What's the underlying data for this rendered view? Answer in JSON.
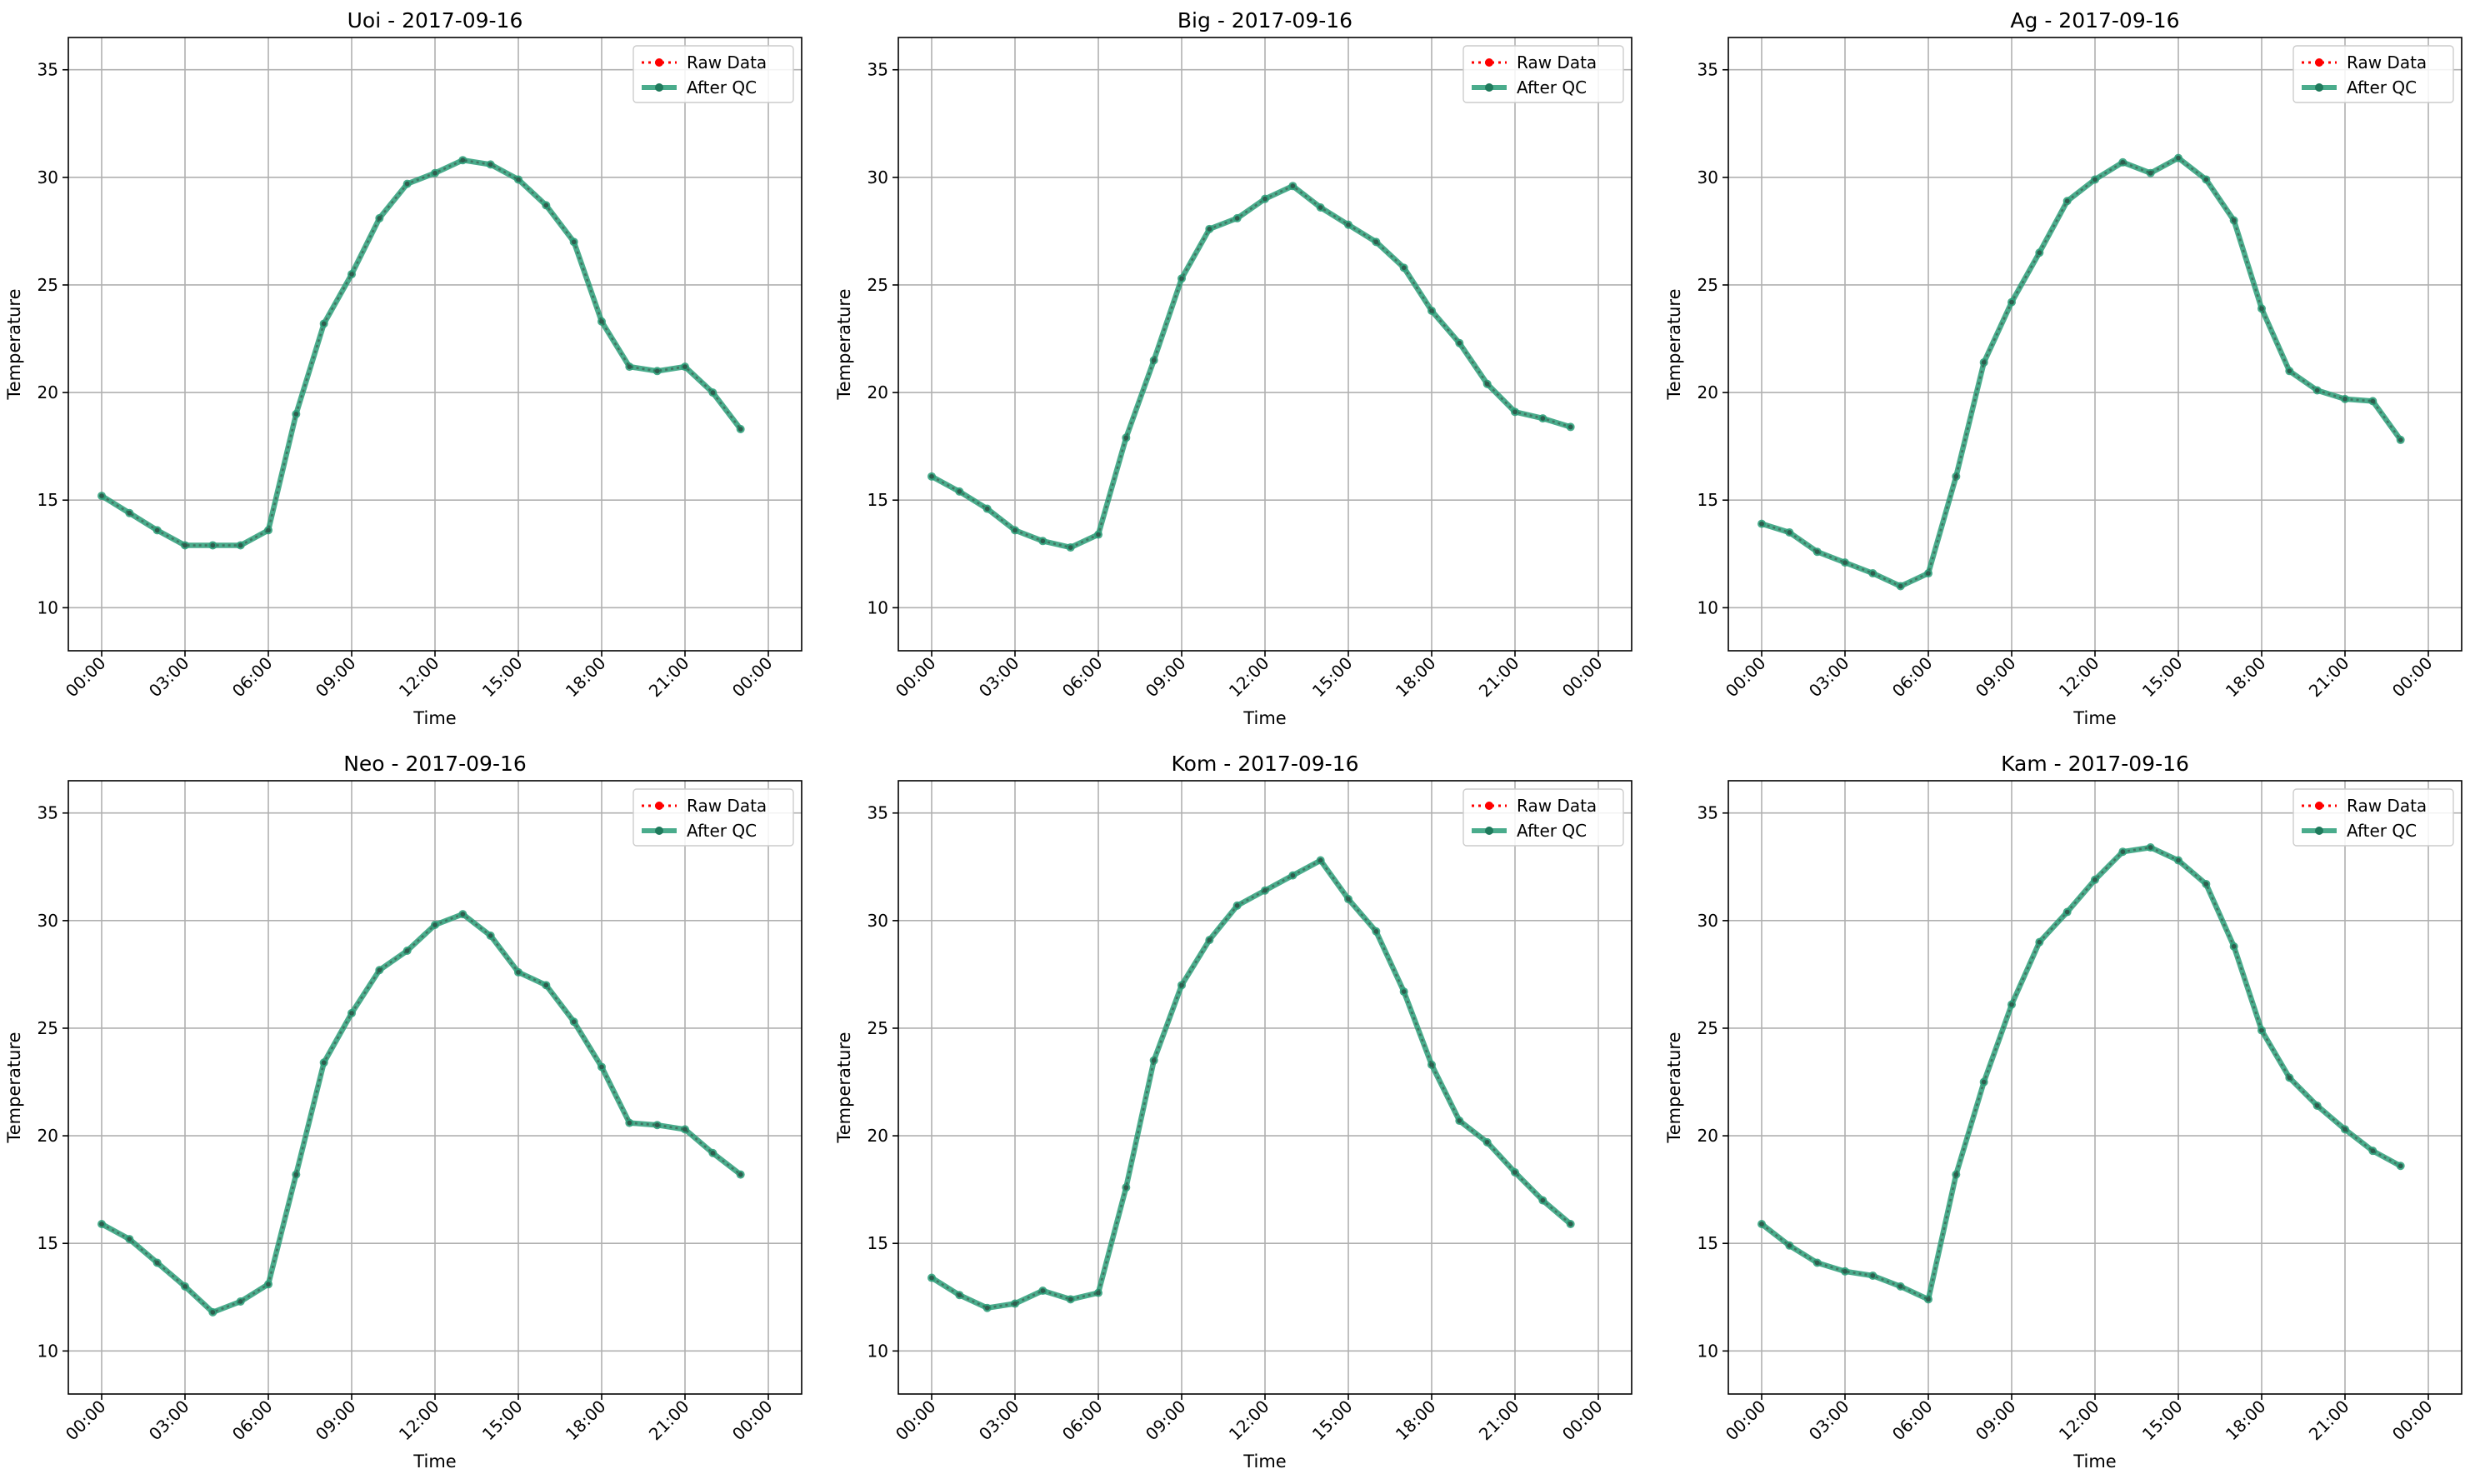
{
  "chart_data": [
    {
      "type": "line",
      "title": "Uoi - 2017-09-16",
      "xlabel": "Time",
      "ylabel": "Temperature",
      "xticks": [
        "00:00",
        "03:00",
        "06:00",
        "09:00",
        "12:00",
        "15:00",
        "18:00",
        "21:00",
        "00:00"
      ],
      "yticks": [
        10,
        15,
        20,
        25,
        30,
        35
      ],
      "ylim": [
        8,
        36.5
      ],
      "x_hours": [
        0,
        1,
        2,
        3,
        4,
        5,
        6,
        7,
        8,
        9,
        10,
        11,
        12,
        13,
        14,
        15,
        16,
        17,
        18,
        19,
        20,
        21,
        22,
        23
      ],
      "series": [
        {
          "name": "Raw Data",
          "color": "#ff0000",
          "style": "dotted",
          "values": [
            15.2,
            14.4,
            13.6,
            12.9,
            12.9,
            12.9,
            13.6,
            19.0,
            23.2,
            25.5,
            28.1,
            29.7,
            30.2,
            30.8,
            30.6,
            29.9,
            28.7,
            27.0,
            23.3,
            21.2,
            21.0,
            21.2,
            20.0,
            18.3
          ]
        },
        {
          "name": "After QC",
          "color": "#2a9d78",
          "style": "solid",
          "values": [
            15.2,
            14.4,
            13.6,
            12.9,
            12.9,
            12.9,
            13.6,
            19.0,
            23.2,
            25.5,
            28.1,
            29.7,
            30.2,
            30.8,
            30.6,
            29.9,
            28.7,
            27.0,
            23.3,
            21.2,
            21.0,
            21.2,
            20.0,
            18.3
          ]
        }
      ],
      "legend_position": "upper right",
      "grid": true
    },
    {
      "type": "line",
      "title": "Big - 2017-09-16",
      "xlabel": "Time",
      "ylabel": "Temperature",
      "xticks": [
        "00:00",
        "03:00",
        "06:00",
        "09:00",
        "12:00",
        "15:00",
        "18:00",
        "21:00",
        "00:00"
      ],
      "yticks": [
        10,
        15,
        20,
        25,
        30,
        35
      ],
      "ylim": [
        8,
        36.5
      ],
      "x_hours": [
        0,
        1,
        2,
        3,
        4,
        5,
        6,
        7,
        8,
        9,
        10,
        11,
        12,
        13,
        14,
        15,
        16,
        17,
        18,
        19,
        20,
        21,
        22,
        23
      ],
      "series": [
        {
          "name": "Raw Data",
          "color": "#ff0000",
          "style": "dotted",
          "values": [
            16.1,
            15.4,
            14.6,
            13.6,
            13.1,
            12.8,
            13.4,
            17.9,
            21.5,
            25.3,
            27.6,
            28.1,
            29.0,
            29.6,
            28.6,
            27.8,
            27.0,
            25.8,
            23.8,
            22.3,
            20.4,
            19.1,
            18.8,
            18.4
          ]
        },
        {
          "name": "After QC",
          "color": "#2a9d78",
          "style": "solid",
          "values": [
            16.1,
            15.4,
            14.6,
            13.6,
            13.1,
            12.8,
            13.4,
            17.9,
            21.5,
            25.3,
            27.6,
            28.1,
            29.0,
            29.6,
            28.6,
            27.8,
            27.0,
            25.8,
            23.8,
            22.3,
            20.4,
            19.1,
            18.8,
            18.4
          ]
        }
      ],
      "legend_position": "upper right",
      "grid": true
    },
    {
      "type": "line",
      "title": "Ag - 2017-09-16",
      "xlabel": "Time",
      "ylabel": "Temperature",
      "xticks": [
        "00:00",
        "03:00",
        "06:00",
        "09:00",
        "12:00",
        "15:00",
        "18:00",
        "21:00",
        "00:00"
      ],
      "yticks": [
        10,
        15,
        20,
        25,
        30,
        35
      ],
      "ylim": [
        8,
        36.5
      ],
      "x_hours": [
        0,
        1,
        2,
        3,
        4,
        5,
        6,
        7,
        8,
        9,
        10,
        11,
        12,
        13,
        14,
        15,
        16,
        17,
        18,
        19,
        20,
        21,
        22,
        23
      ],
      "series": [
        {
          "name": "Raw Data",
          "color": "#ff0000",
          "style": "dotted",
          "values": [
            13.9,
            13.5,
            12.6,
            12.1,
            11.6,
            11.0,
            11.6,
            16.1,
            21.4,
            24.2,
            26.5,
            28.9,
            29.9,
            30.7,
            30.2,
            30.9,
            29.9,
            28.0,
            23.9,
            21.0,
            20.1,
            19.7,
            19.6,
            17.8
          ]
        },
        {
          "name": "After QC",
          "color": "#2a9d78",
          "style": "solid",
          "values": [
            13.9,
            13.5,
            12.6,
            12.1,
            11.6,
            11.0,
            11.6,
            16.1,
            21.4,
            24.2,
            26.5,
            28.9,
            29.9,
            30.7,
            30.2,
            30.9,
            29.9,
            28.0,
            23.9,
            21.0,
            20.1,
            19.7,
            19.6,
            17.8
          ]
        }
      ],
      "legend_position": "upper right",
      "grid": true
    },
    {
      "type": "line",
      "title": "Neo - 2017-09-16",
      "xlabel": "Time",
      "ylabel": "Temperature",
      "xticks": [
        "00:00",
        "03:00",
        "06:00",
        "09:00",
        "12:00",
        "15:00",
        "18:00",
        "21:00",
        "00:00"
      ],
      "yticks": [
        10,
        15,
        20,
        25,
        30,
        35
      ],
      "ylim": [
        8,
        36.5
      ],
      "x_hours": [
        0,
        1,
        2,
        3,
        4,
        5,
        6,
        7,
        8,
        9,
        10,
        11,
        12,
        13,
        14,
        15,
        16,
        17,
        18,
        19,
        20,
        21,
        22,
        23
      ],
      "series": [
        {
          "name": "Raw Data",
          "color": "#ff0000",
          "style": "dotted",
          "values": [
            15.9,
            15.2,
            14.1,
            13.0,
            11.8,
            12.3,
            13.1,
            18.2,
            23.4,
            25.7,
            27.7,
            28.6,
            29.8,
            30.3,
            29.3,
            27.6,
            27.0,
            25.3,
            23.2,
            20.6,
            20.5,
            20.3,
            19.2,
            18.2
          ]
        },
        {
          "name": "After QC",
          "color": "#2a9d78",
          "style": "solid",
          "values": [
            15.9,
            15.2,
            14.1,
            13.0,
            11.8,
            12.3,
            13.1,
            18.2,
            23.4,
            25.7,
            27.7,
            28.6,
            29.8,
            30.3,
            29.3,
            27.6,
            27.0,
            25.3,
            23.2,
            20.6,
            20.5,
            20.3,
            19.2,
            18.2
          ]
        }
      ],
      "legend_position": "upper right",
      "grid": true
    },
    {
      "type": "line",
      "title": "Kom - 2017-09-16",
      "xlabel": "Time",
      "ylabel": "Temperature",
      "xticks": [
        "00:00",
        "03:00",
        "06:00",
        "09:00",
        "12:00",
        "15:00",
        "18:00",
        "21:00",
        "00:00"
      ],
      "yticks": [
        10,
        15,
        20,
        25,
        30,
        35
      ],
      "ylim": [
        8,
        36.5
      ],
      "x_hours": [
        0,
        1,
        2,
        3,
        4,
        5,
        6,
        7,
        8,
        9,
        10,
        11,
        12,
        13,
        14,
        15,
        16,
        17,
        18,
        19,
        20,
        21,
        22,
        23
      ],
      "series": [
        {
          "name": "Raw Data",
          "color": "#ff0000",
          "style": "dotted",
          "values": [
            13.4,
            12.6,
            12.0,
            12.2,
            12.8,
            12.4,
            12.7,
            17.6,
            23.5,
            27.0,
            29.1,
            30.7,
            31.4,
            32.1,
            32.8,
            31.0,
            29.5,
            26.7,
            23.3,
            20.7,
            19.7,
            18.3,
            17.0,
            15.9
          ]
        },
        {
          "name": "After QC",
          "color": "#2a9d78",
          "style": "solid",
          "values": [
            13.4,
            12.6,
            12.0,
            12.2,
            12.8,
            12.4,
            12.7,
            17.6,
            23.5,
            27.0,
            29.1,
            30.7,
            31.4,
            32.1,
            32.8,
            31.0,
            29.5,
            26.7,
            23.3,
            20.7,
            19.7,
            18.3,
            17.0,
            15.9
          ]
        }
      ],
      "legend_position": "upper right",
      "grid": true
    },
    {
      "type": "line",
      "title": "Kam - 2017-09-16",
      "xlabel": "Time",
      "ylabel": "Temperature",
      "xticks": [
        "00:00",
        "03:00",
        "06:00",
        "09:00",
        "12:00",
        "15:00",
        "18:00",
        "21:00",
        "00:00"
      ],
      "yticks": [
        10,
        15,
        20,
        25,
        30,
        35
      ],
      "ylim": [
        8,
        36.5
      ],
      "x_hours": [
        0,
        1,
        2,
        3,
        4,
        5,
        6,
        7,
        8,
        9,
        10,
        11,
        12,
        13,
        14,
        15,
        16,
        17,
        18,
        19,
        20,
        21,
        22,
        23
      ],
      "series": [
        {
          "name": "Raw Data",
          "color": "#ff0000",
          "style": "dotted",
          "values": [
            15.9,
            14.9,
            14.1,
            13.7,
            13.5,
            13.0,
            12.4,
            18.2,
            22.5,
            26.1,
            29.0,
            30.4,
            31.9,
            33.2,
            33.4,
            32.8,
            31.7,
            28.8,
            24.9,
            22.7,
            21.4,
            20.3,
            19.3,
            18.6
          ]
        },
        {
          "name": "After QC",
          "color": "#2a9d78",
          "style": "solid",
          "values": [
            15.9,
            14.9,
            14.1,
            13.7,
            13.5,
            13.0,
            12.4,
            18.2,
            22.5,
            26.1,
            29.0,
            30.4,
            31.9,
            33.2,
            33.4,
            32.8,
            31.7,
            28.8,
            24.9,
            22.7,
            21.4,
            20.3,
            19.3,
            18.6
          ]
        }
      ],
      "legend_position": "upper right",
      "grid": true
    }
  ]
}
